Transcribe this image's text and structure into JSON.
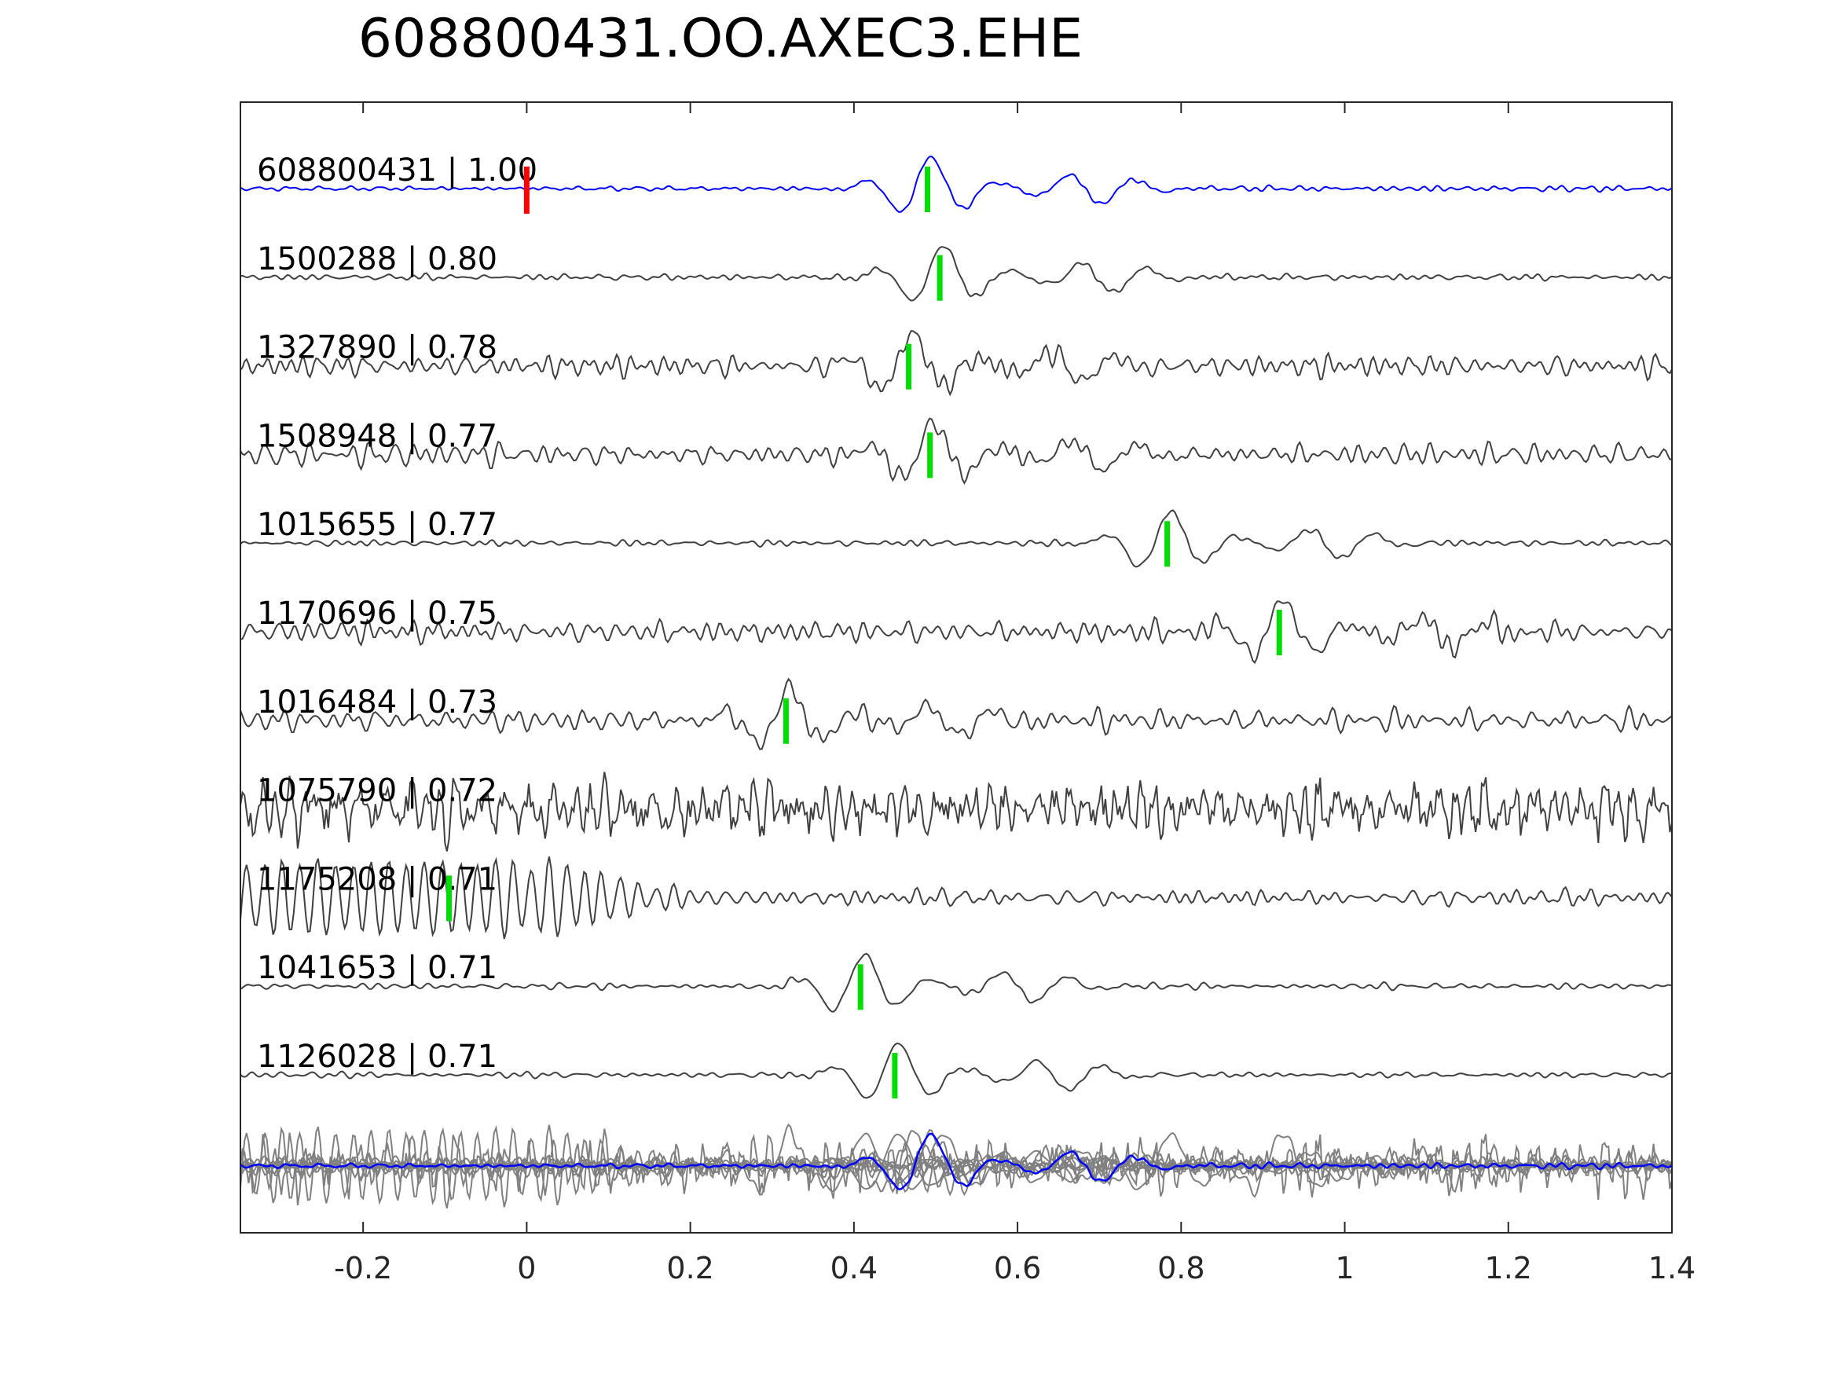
{
  "chart_data": {
    "type": "line",
    "title": "608800431.OO.AXEC3.EHE",
    "xlabel": "",
    "ylabel": "",
    "xlim": [
      -0.35,
      1.4
    ],
    "xticks": [
      -0.2,
      0,
      0.2,
      0.4,
      0.6,
      0.8,
      1,
      1.2,
      1.4
    ],
    "xtick_labels": [
      "-0.2",
      "0",
      "0.2",
      "0.4",
      "0.6",
      "0.8",
      "1",
      "1.2",
      "1.4"
    ],
    "grid": false,
    "colors": {
      "reference_trace": "#0000ff",
      "traces": "#404040",
      "stack": "#808080",
      "reference_pick": "#ff0000",
      "pick": "#00dd00",
      "axes": "#262626"
    },
    "reference_pick_time": 0.0,
    "series": [
      {
        "label": "608800431 | 1.00",
        "pick": 0.49,
        "style": "blue-quiet"
      },
      {
        "label": "1500288 | 0.80",
        "pick": 0.505,
        "style": "quiet"
      },
      {
        "label": "1327890 | 0.78",
        "pick": 0.467,
        "style": "noisy"
      },
      {
        "label": "1508948 | 0.77",
        "pick": 0.493,
        "style": "noisy"
      },
      {
        "label": "1015655 | 0.77",
        "pick": 0.783,
        "style": "quiet"
      },
      {
        "label": "1170696 | 0.75",
        "pick": 0.92,
        "style": "noisy"
      },
      {
        "label": "1016484 | 0.73",
        "pick": 0.317,
        "style": "noisy"
      },
      {
        "label": "1075790 | 0.72",
        "pick": null,
        "style": "very-noisy"
      },
      {
        "label": "1175208 | 0.71",
        "pick": -0.095,
        "style": "ringing"
      },
      {
        "label": "1041653 | 0.71",
        "pick": 0.408,
        "style": "quiet"
      },
      {
        "label": "1126028 | 0.71",
        "pick": 0.45,
        "style": "quiet"
      }
    ]
  }
}
